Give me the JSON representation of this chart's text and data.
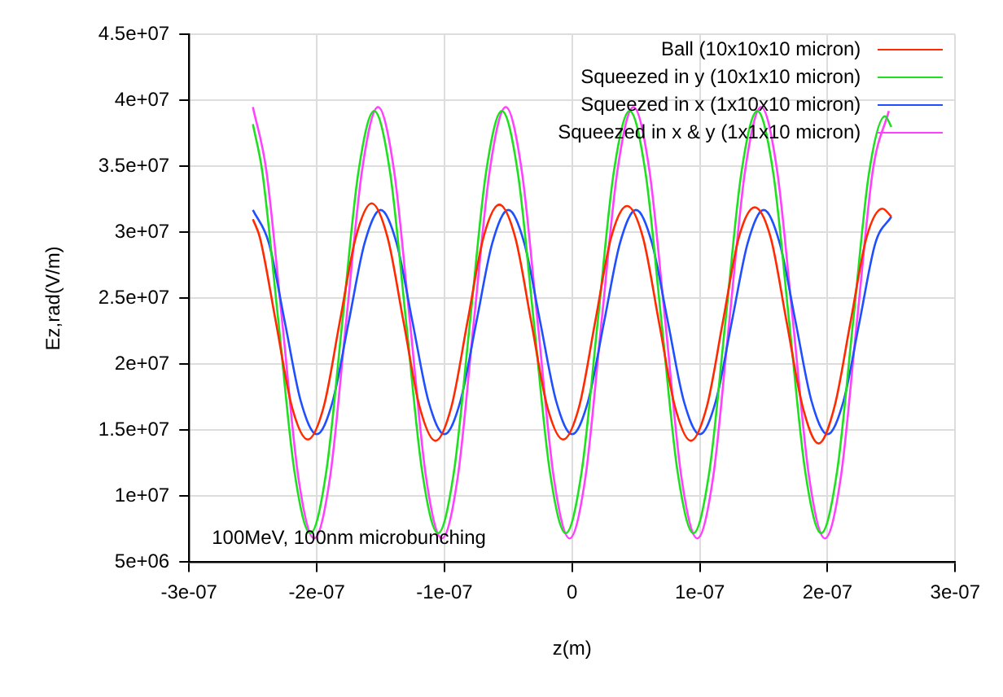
{
  "chart_data": {
    "type": "line",
    "xlabel": "z(m)",
    "ylabel": "Ez,rad(V/m)",
    "xlim": [
      -3e-07,
      3e-07
    ],
    "ylim": [
      5000000.0,
      45000000.0
    ],
    "xticks": [
      {
        "value": -3e-07,
        "label": "-3e-07"
      },
      {
        "value": -2e-07,
        "label": "-2e-07"
      },
      {
        "value": -1e-07,
        "label": "-1e-07"
      },
      0,
      {
        "value": 1e-07,
        "label": "1e-07"
      },
      {
        "value": 2e-07,
        "label": "2e-07"
      },
      {
        "value": 3e-07,
        "label": "3e-07"
      }
    ],
    "yticks": [
      {
        "value": 5000000.0,
        "label": "5e+06"
      },
      {
        "value": 10000000.0,
        "label": "1e+07"
      },
      {
        "value": 15000000.0,
        "label": "1.5e+07"
      },
      {
        "value": 20000000.0,
        "label": "2e+07"
      },
      {
        "value": 25000000.0,
        "label": "2.5e+07"
      },
      {
        "value": 30000000.0,
        "label": "3e+07"
      },
      {
        "value": 35000000.0,
        "label": "3.5e+07"
      },
      {
        "value": 40000000.0,
        "label": "4e+07"
      },
      {
        "value": 45000000.0,
        "label": "4.5e+07"
      }
    ],
    "grid": true,
    "legend": "top right",
    "annotations": [
      "100MeV, 100nm microbunching"
    ],
    "series": [
      {
        "name": "Ball (10x10x10 micron)",
        "color": "#ff2a00",
        "x": [
          -2.5e-07,
          -2.445e-07,
          -2.32e-07,
          -2.195e-07,
          -2.07e-07,
          -1.945e-07,
          -1.82e-07,
          -1.695e-07,
          -1.57e-07,
          -1.445e-07,
          -1.32e-07,
          -1.195e-07,
          -1.07e-07,
          -9.45e-08,
          -8.2e-08,
          -6.95e-08,
          -5.7e-08,
          -4.45e-08,
          -3.2e-08,
          -1.95e-08,
          -7e-09,
          5.5e-09,
          1.8e-08,
          3.05e-08,
          4.3e-08,
          5.55e-08,
          6.8e-08,
          8.05e-08,
          9.3e-08,
          1.055e-07,
          1.18e-07,
          1.305e-07,
          1.43e-07,
          1.555e-07,
          1.68e-07,
          1.805e-07,
          1.93e-07,
          2.055e-07,
          2.18e-07,
          2.305e-07,
          2.43e-07,
          2.5e-07
        ],
        "values": [
          31000000.0,
          29600000.0,
          23200000.0,
          16800000.0,
          14300000.0,
          16800000.0,
          23200000.0,
          29600000.0,
          32200000.0,
          29600000.0,
          23200000.0,
          16800000.0,
          14200000.0,
          16800000.0,
          23200000.0,
          29600000.0,
          32100000.0,
          29600000.0,
          23200000.0,
          16800000.0,
          14300000.0,
          16800000.0,
          23200000.0,
          29600000.0,
          32000000.0,
          29600000.0,
          23200000.0,
          16800000.0,
          14200000.0,
          16800000.0,
          23200000.0,
          29600000.0,
          31900000.0,
          29600000.0,
          23200000.0,
          16800000.0,
          14000000.0,
          16800000.0,
          23200000.0,
          29600000.0,
          31800000.0,
          31200000.0
        ]
      },
      {
        "name": "Squeezed in y (10x1x10 micron)",
        "color": "#1fe01f",
        "x": [
          -2.5e-07,
          -2.425e-07,
          -2.3e-07,
          -2.175e-07,
          -2.05e-07,
          -1.925e-07,
          -1.8e-07,
          -1.675e-07,
          -1.55e-07,
          -1.425e-07,
          -1.3e-07,
          -1.175e-07,
          -1.05e-07,
          -9.25e-08,
          -8e-08,
          -6.75e-08,
          -5.5e-08,
          -4.25e-08,
          -3e-08,
          -1.75e-08,
          -5e-09,
          7.5e-09,
          2e-08,
          3.25e-08,
          4.5e-08,
          5.75e-08,
          7e-08,
          8.25e-08,
          9.5e-08,
          1.075e-07,
          1.2e-07,
          1.325e-07,
          1.45e-07,
          1.575e-07,
          1.7e-07,
          1.825e-07,
          1.95e-07,
          2.075e-07,
          2.2e-07,
          2.325e-07,
          2.45e-07,
          2.5e-07
        ],
        "values": [
          38200000.0,
          34500000.0,
          23200000.0,
          11900000.0,
          7200000.0,
          11900000.0,
          23200000.0,
          34500000.0,
          39200000.0,
          34500000.0,
          23200000.0,
          11900000.0,
          7200000.0,
          11900000.0,
          23200000.0,
          34500000.0,
          39200000.0,
          34500000.0,
          23200000.0,
          11900000.0,
          7200000.0,
          11900000.0,
          23200000.0,
          34500000.0,
          39200000.0,
          34500000.0,
          23200000.0,
          11900000.0,
          7200000.0,
          11900000.0,
          23200000.0,
          34500000.0,
          39200000.0,
          34500000.0,
          23200000.0,
          11900000.0,
          7200000.0,
          11900000.0,
          23200000.0,
          34500000.0,
          38800000.0,
          38000000.0
        ]
      },
      {
        "name": "Squeezed in x (1x10x10 micron)",
        "color": "#1f4fff",
        "x": [
          -2.5e-07,
          -2.375e-07,
          -2.25e-07,
          -2.125e-07,
          -2e-07,
          -1.875e-07,
          -1.75e-07,
          -1.625e-07,
          -1.5e-07,
          -1.375e-07,
          -1.25e-07,
          -1.125e-07,
          -1e-07,
          -8.75e-08,
          -7.5e-08,
          -6.25e-08,
          -5e-08,
          -3.75e-08,
          -2.5e-08,
          -1.25e-08,
          0,
          1.25e-08,
          2.5e-08,
          3.75e-08,
          5e-08,
          6.25e-08,
          7.5e-08,
          8.75e-08,
          1e-07,
          1.125e-07,
          1.25e-07,
          1.375e-07,
          1.5e-07,
          1.625e-07,
          1.75e-07,
          1.875e-07,
          2e-07,
          2.125e-07,
          2.25e-07,
          2.375e-07,
          2.5e-07
        ],
        "values": [
          31700000.0,
          29200000.0,
          23200000.0,
          17200000.0,
          14700000.0,
          17200000.0,
          23200000.0,
          29200000.0,
          31700000.0,
          29200000.0,
          23200000.0,
          17200000.0,
          14700000.0,
          17200000.0,
          23200000.0,
          29200000.0,
          31700000.0,
          29200000.0,
          23200000.0,
          17200000.0,
          14700000.0,
          17200000.0,
          23200000.0,
          29200000.0,
          31700000.0,
          29200000.0,
          23200000.0,
          17200000.0,
          14700000.0,
          17200000.0,
          23200000.0,
          29200000.0,
          31700000.0,
          29200000.0,
          23200000.0,
          17200000.0,
          14700000.0,
          17200000.0,
          23200000.0,
          29200000.0,
          31200000.0
        ]
      },
      {
        "name": "Squeezed in x & y (1x1x10 micron)",
        "color": "#ff40ff",
        "x": [
          -2.5e-07,
          -2.395e-07,
          -2.27e-07,
          -2.145e-07,
          -2.02e-07,
          -1.895e-07,
          -1.77e-07,
          -1.645e-07,
          -1.52e-07,
          -1.395e-07,
          -1.27e-07,
          -1.145e-07,
          -1.02e-07,
          -8.95e-08,
          -7.7e-08,
          -6.45e-08,
          -5.2e-08,
          -3.95e-08,
          -2.7e-08,
          -1.45e-08,
          -2e-09,
          1.05e-08,
          2.3e-08,
          3.55e-08,
          4.8e-08,
          6.05e-08,
          7.3e-08,
          8.55e-08,
          9.8e-08,
          1.105e-07,
          1.23e-07,
          1.355e-07,
          1.48e-07,
          1.605e-07,
          1.73e-07,
          1.855e-07,
          1.98e-07,
          2.105e-07,
          2.23e-07,
          2.355e-07,
          2.48e-07
        ],
        "values": [
          39500000.0,
          34700000.0,
          23200000.0,
          11500000.0,
          6800000.0,
          11500000.0,
          23200000.0,
          34700000.0,
          39500000.0,
          34700000.0,
          23200000.0,
          11500000.0,
          6800000.0,
          11500000.0,
          23200000.0,
          34700000.0,
          39500000.0,
          34700000.0,
          23200000.0,
          11500000.0,
          6800000.0,
          11500000.0,
          23200000.0,
          34700000.0,
          39500000.0,
          34700000.0,
          23200000.0,
          11500000.0,
          6800000.0,
          11500000.0,
          23200000.0,
          34700000.0,
          39500000.0,
          34700000.0,
          23200000.0,
          11500000.0,
          6800000.0,
          11500000.0,
          23200000.0,
          34700000.0,
          39200000.0
        ]
      }
    ]
  }
}
